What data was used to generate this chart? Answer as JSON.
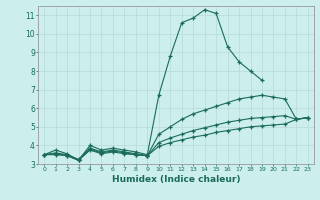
{
  "xlabel": "Humidex (Indice chaleur)",
  "bg_color": "#cceeed",
  "grid_color": "#bbdddd",
  "line_color": "#1a6b5a",
  "xlim": [
    -0.5,
    23.5
  ],
  "ylim": [
    3.0,
    11.5
  ],
  "xticks": [
    0,
    1,
    2,
    3,
    4,
    5,
    6,
    7,
    8,
    9,
    10,
    11,
    12,
    13,
    14,
    15,
    16,
    17,
    18,
    19,
    20,
    21,
    22,
    23
  ],
  "yticks": [
    3,
    4,
    5,
    6,
    7,
    8,
    9,
    10,
    11
  ],
  "series": [
    {
      "x": [
        0,
        1,
        2,
        3,
        4,
        5,
        6,
        7,
        8,
        9,
        10,
        11,
        12,
        13,
        14,
        15,
        16,
        17,
        18,
        19
      ],
      "y": [
        3.5,
        3.75,
        3.55,
        3.2,
        4.0,
        3.75,
        3.85,
        3.75,
        3.65,
        3.5,
        6.7,
        8.8,
        10.6,
        10.85,
        11.3,
        11.1,
        9.3,
        8.5,
        8.0,
        7.5
      ]
    },
    {
      "x": [
        0,
        1,
        2,
        3,
        4,
        5,
        6,
        7,
        8,
        9,
        10,
        11,
        12,
        13,
        14,
        15,
        16,
        17,
        18,
        19,
        20,
        21,
        22,
        23
      ],
      "y": [
        3.5,
        3.6,
        3.5,
        3.25,
        3.85,
        3.65,
        3.75,
        3.65,
        3.55,
        3.45,
        4.6,
        5.0,
        5.4,
        5.7,
        5.9,
        6.1,
        6.3,
        6.5,
        6.6,
        6.7,
        6.6,
        6.5,
        5.4,
        5.5
      ]
    },
    {
      "x": [
        0,
        1,
        2,
        3,
        4,
        5,
        6,
        7,
        8,
        9,
        10,
        11,
        12,
        13,
        14,
        15,
        16,
        17,
        18,
        19,
        20,
        21,
        22,
        23
      ],
      "y": [
        3.5,
        3.55,
        3.45,
        3.2,
        3.8,
        3.6,
        3.7,
        3.6,
        3.5,
        3.45,
        4.15,
        4.4,
        4.6,
        4.8,
        4.95,
        5.1,
        5.25,
        5.35,
        5.45,
        5.5,
        5.55,
        5.6,
        5.4,
        5.5
      ]
    },
    {
      "x": [
        0,
        1,
        2,
        3,
        4,
        5,
        6,
        7,
        8,
        9,
        10,
        11,
        12,
        13,
        14,
        15,
        16,
        17,
        18,
        19,
        20,
        21,
        22,
        23
      ],
      "y": [
        3.5,
        3.5,
        3.45,
        3.2,
        3.75,
        3.55,
        3.65,
        3.55,
        3.5,
        3.45,
        3.95,
        4.15,
        4.3,
        4.45,
        4.55,
        4.7,
        4.8,
        4.9,
        5.0,
        5.05,
        5.1,
        5.15,
        5.4,
        5.5
      ]
    }
  ]
}
